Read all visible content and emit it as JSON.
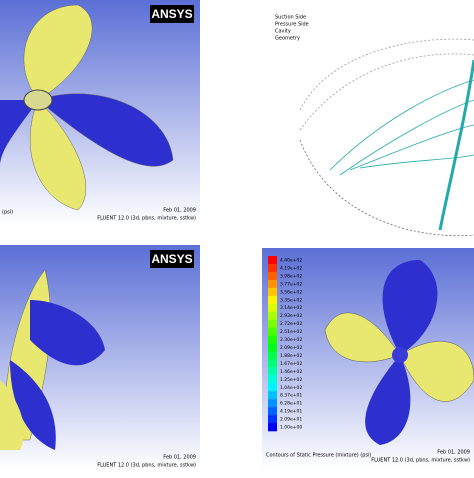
{
  "panels": [
    {
      "logo": "ANSYS",
      "caption": "(psi)",
      "date": "Feb 01, 2009",
      "solver": "FLUENT 12.0 (3d, pbns, mixture, sstkw)"
    },
    {
      "legend_lines": [
        "Suction Side",
        "Pressure Side",
        "Cavity",
        "Geometry"
      ]
    },
    {
      "logo": "ANSYS",
      "date": "Feb 01, 2009",
      "solver": "FLUENT 12.0 (3d, pbns, mixture, sstkw)"
    },
    {
      "legend": [
        "4.40e+02",
        "4.19e+02",
        "3.98e+02",
        "3.77e+02",
        "3.56e+02",
        "3.35e+02",
        "3.14e+02",
        "2.93e+02",
        "2.72e+02",
        "2.51e+02",
        "2.30e+02",
        "2.09e+02",
        "1.88e+02",
        "1.67e+02",
        "1.46e+02",
        "1.25e+02",
        "1.04e+02",
        "8.37e+01",
        "6.28e+01",
        "4.19e+01",
        "2.09e+01",
        "1.00e+00"
      ],
      "caption": "Contours of Static Pressure (mixture) (psi)",
      "date": "Feb 01, 2009",
      "solver": "FLUENT 12.0 (3d, pbns, mixture, sstkw)"
    }
  ]
}
